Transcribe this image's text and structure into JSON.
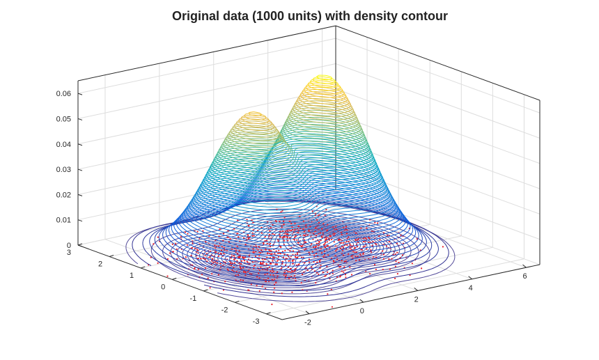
{
  "chart_data": {
    "type": "surface-contour-3d",
    "title": "Original data (1000 units) with density contour",
    "x_ticks": [
      "-2",
      "0",
      "2",
      "4",
      "6"
    ],
    "y_ticks": [
      "-3",
      "-2",
      "-1",
      "0",
      "1",
      "2",
      "3"
    ],
    "z_ticks": [
      "0",
      "0.01",
      "0.02",
      "0.03",
      "0.04",
      "0.05",
      "0.06"
    ],
    "xlim": [
      -3,
      6.5
    ],
    "ylim": [
      -3.5,
      3
    ],
    "zlim": [
      0,
      0.065
    ],
    "grid": true,
    "density_peaks": [
      {
        "x": 0,
        "y": 0,
        "peak_density": 0.058
      },
      {
        "x": 3,
        "y": 0.3,
        "peak_density": 0.065
      }
    ],
    "scatter": {
      "n_points": 1000,
      "color": "#e8202a"
    },
    "colormap": "parula",
    "colors": {
      "low": "#352a87",
      "mid": "#20b2aa",
      "high": "#f9fb0e"
    }
  }
}
